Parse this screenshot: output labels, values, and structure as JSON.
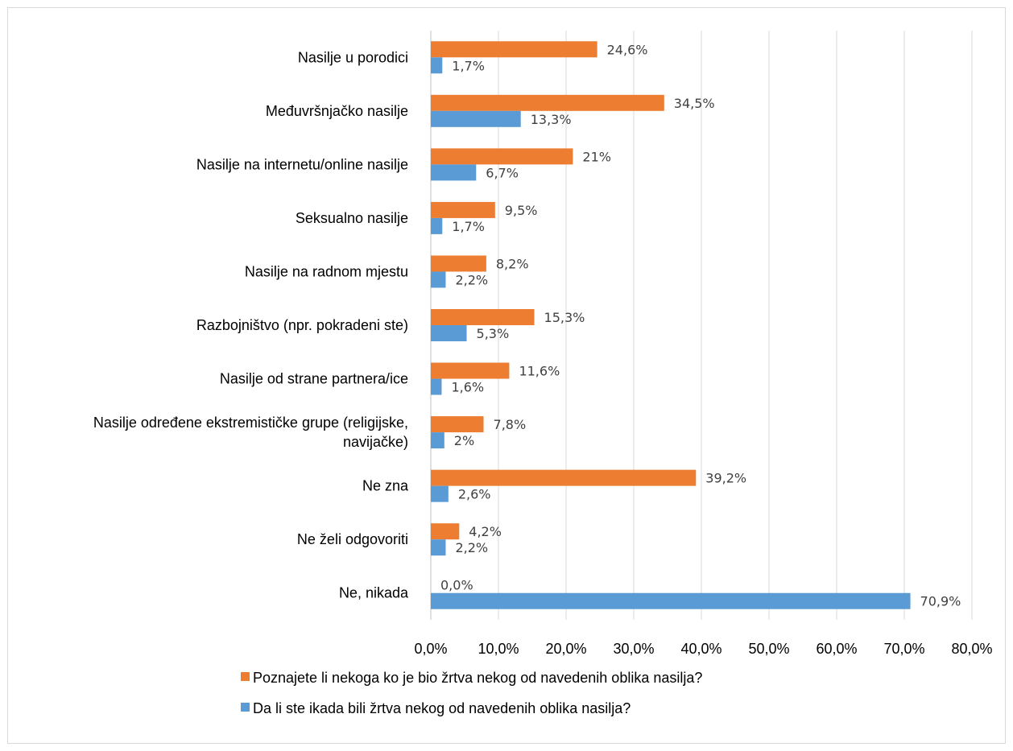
{
  "chart_data": {
    "type": "bar",
    "orientation": "horizontal",
    "categories": [
      "Nasilje u porodici",
      "Međuvršnjačko nasilje",
      "Nasilje na internetu/online nasilje",
      "Seksualno nasilje",
      "Nasilje na radnom mjestu",
      "Razbojništvo (npr. pokradeni ste)",
      "Nasilje od strane partnera/ice",
      "Nasilje određene ekstremističke grupe (religijske, navijačke)",
      "Ne zna",
      "Ne želi odgovoriti",
      "Ne, nikada"
    ],
    "category_lines": [
      [
        "Nasilje u porodici"
      ],
      [
        "Međuvršnjačko nasilje"
      ],
      [
        "Nasilje na internetu/online nasilje"
      ],
      [
        "Seksualno nasilje"
      ],
      [
        "Nasilje na radnom mjestu"
      ],
      [
        "Razbojništvo (npr. pokradeni ste)"
      ],
      [
        "Nasilje od strane partnera/ice"
      ],
      [
        "Nasilje određene ekstremističke grupe (religijske,",
        "navijačke)"
      ],
      [
        "Ne zna"
      ],
      [
        "Ne želi odgovoriti"
      ],
      [
        "Ne, nikada"
      ]
    ],
    "series": [
      {
        "name": "Poznajete li nekoga ko je bio žrtva nekog od navedenih oblika nasilja?",
        "color": "#ed7d31",
        "values": [
          24.6,
          34.5,
          21,
          9.5,
          8.2,
          15.3,
          11.6,
          7.8,
          39.2,
          4.2,
          0.0
        ],
        "labels": [
          "24,6%",
          "34,5%",
          "21%",
          "9,5%",
          "8,2%",
          "15,3%",
          "11,6%",
          "7,8%",
          "39,2%",
          "4,2%",
          "0,0%"
        ]
      },
      {
        "name": "Da li ste ikada bili žrtva nekog od navedenih oblika nasilja?",
        "color": "#5b9bd5",
        "values": [
          1.7,
          13.3,
          6.7,
          1.7,
          2.2,
          5.3,
          1.6,
          2,
          2.6,
          2.2,
          70.9
        ],
        "labels": [
          "1,7%",
          "13,3%",
          "6,7%",
          "1,7%",
          "2,2%",
          "5,3%",
          "1,6%",
          "2%",
          "2,6%",
          "2,2%",
          "70,9%"
        ]
      }
    ],
    "xlim": [
      0,
      80
    ],
    "xticks": [
      0,
      10,
      20,
      30,
      40,
      50,
      60,
      70,
      80
    ],
    "xtick_labels": [
      "0,0%",
      "10,0%",
      "20,0%",
      "30,0%",
      "40,0%",
      "50,0%",
      "60,0%",
      "70,0%",
      "80,0%"
    ],
    "grid": true,
    "legend_position": "bottom"
  }
}
